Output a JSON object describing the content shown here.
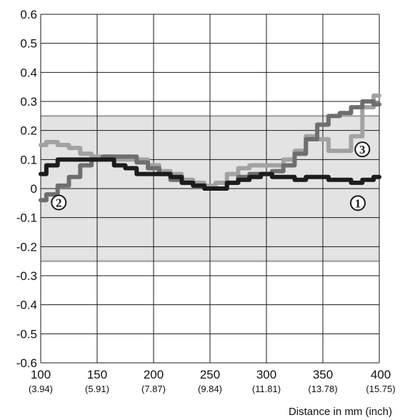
{
  "chart_data": {
    "type": "line",
    "xlabel": "Distance in mm (inch)",
    "ylabel": "",
    "xlim": [
      100,
      400
    ],
    "ylim": [
      -0.6,
      0.6
    ],
    "grid": true,
    "x_ticks": [
      {
        "value": 100,
        "label": "100",
        "sub": "(3.94)"
      },
      {
        "value": 150,
        "label": "150",
        "sub": "(5.91)"
      },
      {
        "value": 200,
        "label": "200",
        "sub": "(7.87)"
      },
      {
        "value": 250,
        "label": "250",
        "sub": "(9.84)"
      },
      {
        "value": 300,
        "label": "300",
        "sub": "(11.81)"
      },
      {
        "value": 350,
        "label": "350",
        "sub": "(13.78)"
      },
      {
        "value": 400,
        "label": "400",
        "sub": "(15.75)"
      }
    ],
    "y_ticks": [
      {
        "value": 0.6,
        "label": "0.6"
      },
      {
        "value": 0.5,
        "label": "0.5"
      },
      {
        "value": 0.4,
        "label": "0.4"
      },
      {
        "value": 0.3,
        "label": "0.3"
      },
      {
        "value": 0.2,
        "label": "0.2"
      },
      {
        "value": 0.1,
        "label": "0.1"
      },
      {
        "value": 0,
        "label": "0"
      },
      {
        "value": -0.1,
        "label": "-0.1"
      },
      {
        "value": -0.2,
        "label": "-0.2"
      },
      {
        "value": -0.3,
        "label": "-0.3"
      },
      {
        "value": -0.4,
        "label": "-0.4"
      },
      {
        "value": -0.5,
        "label": "-0.5"
      },
      {
        "value": -0.6,
        "label": "-0.6"
      }
    ],
    "tolerance_band": {
      "min": -0.25,
      "max": 0.25,
      "fill": "#e3e3e3",
      "edge": "#a8a8a8"
    },
    "series": [
      {
        "marker": "①",
        "color": "#1c1c1c",
        "x": [
          100,
          110,
          120,
          130,
          140,
          150,
          160,
          170,
          180,
          190,
          200,
          210,
          220,
          230,
          240,
          250,
          260,
          270,
          280,
          290,
          300,
          310,
          320,
          330,
          340,
          350,
          360,
          370,
          380,
          390,
          400
        ],
        "y": [
          0.05,
          0.08,
          0.1,
          0.1,
          0.1,
          0.1,
          0.1,
          0.08,
          0.07,
          0.05,
          0.05,
          0.05,
          0.04,
          0.02,
          0.01,
          0.0,
          0.0,
          0.02,
          0.03,
          0.04,
          0.05,
          0.04,
          0.04,
          0.03,
          0.04,
          0.04,
          0.03,
          0.03,
          0.02,
          0.03,
          0.04
        ]
      },
      {
        "marker": "②",
        "color": "#6e6e6e",
        "x": [
          100,
          110,
          120,
          130,
          140,
          150,
          160,
          170,
          180,
          190,
          200,
          210,
          220,
          230,
          240,
          250,
          260,
          270,
          280,
          290,
          300,
          310,
          320,
          330,
          340,
          350,
          360,
          370,
          380,
          390,
          400
        ],
        "y": [
          -0.04,
          -0.02,
          0.01,
          0.04,
          0.08,
          0.1,
          0.11,
          0.11,
          0.11,
          0.09,
          0.07,
          0.05,
          0.03,
          0.02,
          0.01,
          0.0,
          0.0,
          0.02,
          0.04,
          0.05,
          0.05,
          0.06,
          0.08,
          0.12,
          0.17,
          0.22,
          0.25,
          0.26,
          0.28,
          0.3,
          0.29
        ]
      },
      {
        "marker": "③",
        "color": "#a2a2a2",
        "x": [
          100,
          110,
          120,
          130,
          140,
          150,
          160,
          170,
          180,
          190,
          200,
          210,
          220,
          230,
          240,
          250,
          260,
          270,
          280,
          290,
          300,
          310,
          320,
          330,
          340,
          350,
          360,
          370,
          380,
          390,
          400
        ],
        "y": [
          0.15,
          0.16,
          0.15,
          0.14,
          0.12,
          0.11,
          0.11,
          0.1,
          0.1,
          0.1,
          0.08,
          0.06,
          0.05,
          0.03,
          0.02,
          0.01,
          0.02,
          0.05,
          0.07,
          0.08,
          0.08,
          0.08,
          0.1,
          0.13,
          0.18,
          0.17,
          0.13,
          0.13,
          0.18,
          0.28,
          0.32
        ]
      }
    ]
  }
}
